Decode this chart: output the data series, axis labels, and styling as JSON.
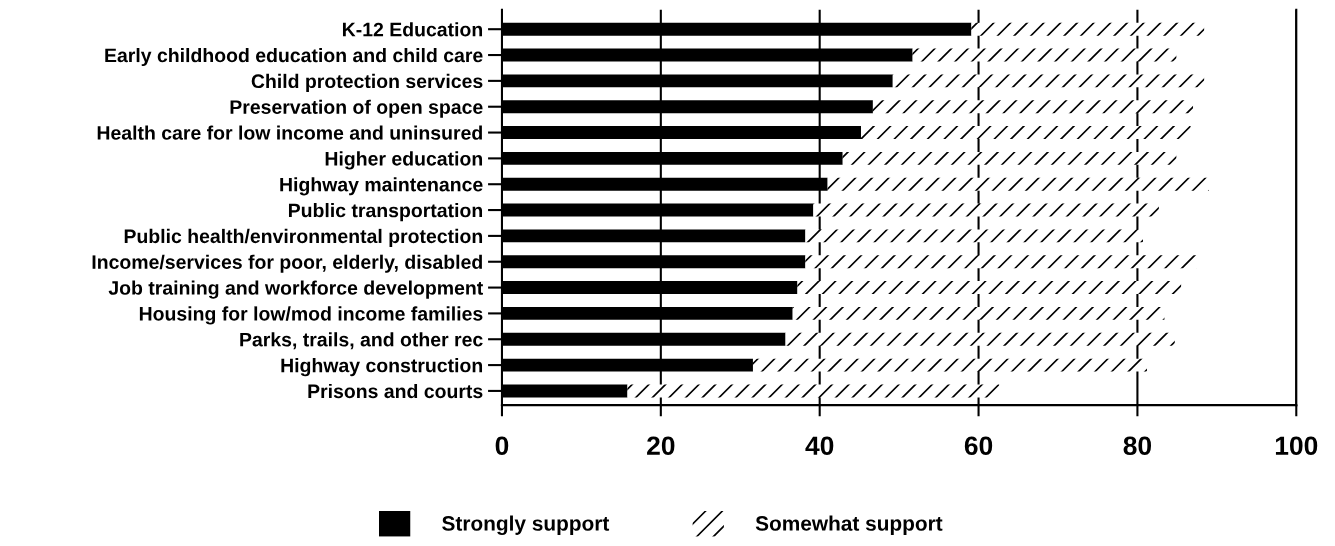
{
  "chart_data": {
    "type": "bar",
    "orientation": "horizontal",
    "stacked": true,
    "categories": [
      "K-12 Education",
      "Early childhood education and child care",
      "Child protection services",
      "Preservation of open space",
      "Health care for low income and uninsured",
      "Higher education",
      "Highway maintenance",
      "Public transportation",
      "Public health/environmental protection",
      "Income/services for poor, elderly, disabled",
      "Job training and workforce development",
      "Housing for low/mod income families",
      "Parks, trails, and other rec",
      "Highway construction",
      "Prisons and courts"
    ],
    "series": [
      {
        "name": "Strongly support",
        "color": "#000000",
        "values": [
          59.1,
          51.7,
          49.2,
          46.7,
          45.2,
          42.9,
          41.0,
          39.2,
          38.2,
          38.2,
          37.2,
          36.6,
          35.7,
          31.6,
          15.8
        ]
      },
      {
        "name": "Somewhat support",
        "color": "#ffffff",
        "values": [
          29.3,
          33.2,
          39.2,
          40.3,
          41.5,
          42.0,
          48.0,
          43.5,
          42.5,
          49.3,
          48.3,
          46.8,
          49.0,
          49.6,
          46.8
        ]
      }
    ],
    "xlim": [
      0,
      100
    ],
    "xticks": [
      0,
      20,
      40,
      60,
      80,
      100
    ],
    "grid": "x",
    "legend": "bottom"
  }
}
